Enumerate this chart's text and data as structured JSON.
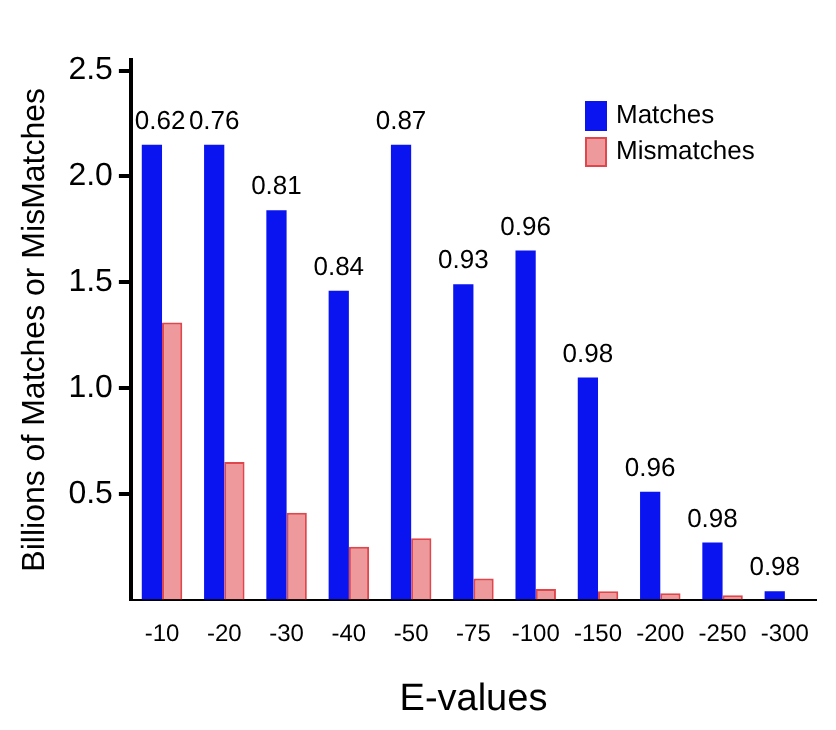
{
  "chart_data": {
    "type": "bar",
    "xlabel": "E-values",
    "ylabel": "Billions of Matches or MisMatches",
    "categories": [
      "-10",
      "-20",
      "-30",
      "-40",
      "-50",
      "-75",
      "-100",
      "-150",
      "-200",
      "-250",
      "-300"
    ],
    "series": [
      {
        "name": "Matches",
        "color": "#0a14f0",
        "values": [
          2.15,
          2.15,
          1.84,
          1.46,
          2.15,
          1.49,
          1.65,
          1.05,
          0.51,
          0.27,
          0.04
        ]
      },
      {
        "name": "Mismatches",
        "color": "#e0474c",
        "values": [
          1.31,
          0.65,
          0.41,
          0.25,
          0.29,
          0.1,
          0.05,
          0.04,
          0.03,
          0.02,
          0
        ]
      }
    ],
    "ylim": [
      0,
      2.55
    ],
    "yticks": [
      0.5,
      {
        "value": 1,
        "label": "1.0"
      },
      1.5,
      {
        "value": 2,
        "label": "2.0"
      },
      2.5
    ],
    "grid": false,
    "legend": "top right",
    "annotations": [
      {
        "text": "0.62",
        "x": "-10",
        "y": 2.15
      },
      {
        "text": "0.76",
        "x": "-20",
        "y": 2.15
      },
      {
        "text": "0.81",
        "x": "-30",
        "y": 1.84
      },
      {
        "text": "0.84",
        "x": "-40",
        "y": 1.46
      },
      {
        "text": "0.87",
        "x": "-50",
        "y": 2.15
      },
      {
        "text": "0.93",
        "x": "-75",
        "y": 1.49
      },
      {
        "text": "0.96",
        "x": "-100",
        "y": 1.65
      },
      {
        "text": "0.98",
        "x": "-150",
        "y": 1.05
      },
      {
        "text": "0.96",
        "x": "-200",
        "y": 0.51
      },
      {
        "text": "0.98",
        "x": "-250",
        "y": 0.27
      },
      {
        "text": "0.98",
        "x": "-300",
        "y": 0.04
      }
    ]
  }
}
